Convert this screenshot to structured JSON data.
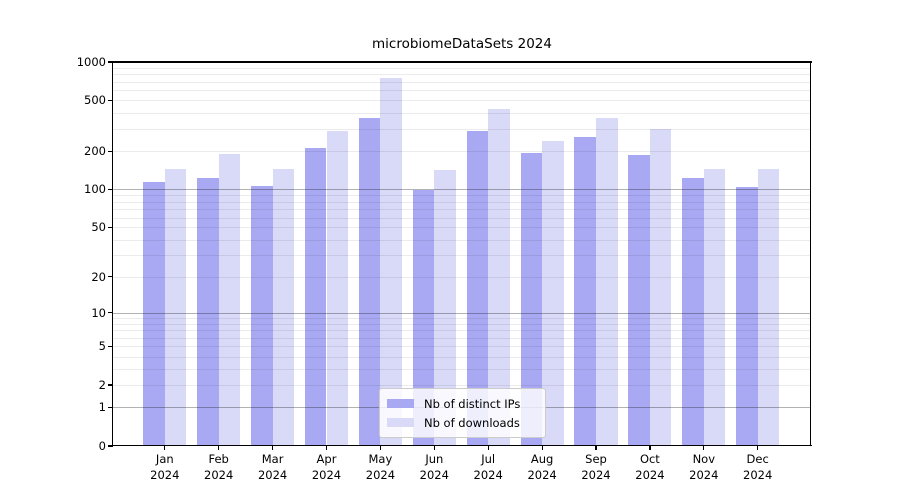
{
  "chart_data": {
    "type": "bar",
    "title": "microbiomeDataSets 2024",
    "year_label": "2024",
    "categories": [
      "Jan",
      "Feb",
      "Mar",
      "Apr",
      "May",
      "Jun",
      "Jul",
      "Aug",
      "Sep",
      "Oct",
      "Nov",
      "Dec"
    ],
    "series": [
      {
        "name": "Nb of distinct IPs",
        "color": "#a9a9f3",
        "values": [
          115,
          123,
          106,
          212,
          367,
          99,
          290,
          195,
          259,
          188,
          123,
          105
        ]
      },
      {
        "name": "Nb of downloads",
        "color": "#d9d9f8",
        "values": [
          146,
          190,
          146,
          288,
          749,
          143,
          426,
          239,
          365,
          301,
          144,
          144
        ]
      }
    ],
    "xlabel": "",
    "ylabel": "",
    "yscale": "log1p",
    "ylim": [
      0,
      1000
    ],
    "yticks": [
      1000,
      500,
      200,
      100,
      50,
      20,
      10,
      5,
      2,
      1,
      0
    ],
    "grid": "horizontal, minor log gridlines light gray, decade lines darker, drawn over bars",
    "legend_position": "inside-bottom-center"
  },
  "colors": {
    "background": "#ffffff",
    "spine": "#000000",
    "grid_minor": "rgba(0,0,0,0.08)",
    "grid_major": "rgba(0,0,0,0.30)"
  }
}
